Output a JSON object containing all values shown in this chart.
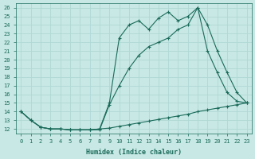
{
  "title": "",
  "xlabel": "Humidex (Indice chaleur)",
  "ylabel": "",
  "bg_color": "#c8e8e5",
  "line_color": "#1a6b5a",
  "grid_color": "#b0d8d4",
  "ylim": [
    11.5,
    26.5
  ],
  "xlim": [
    -0.5,
    23.5
  ],
  "yticks": [
    12,
    13,
    14,
    15,
    16,
    17,
    18,
    19,
    20,
    21,
    22,
    23,
    24,
    25,
    26
  ],
  "xticks": [
    0,
    1,
    2,
    3,
    4,
    5,
    6,
    7,
    8,
    9,
    10,
    11,
    12,
    13,
    14,
    15,
    16,
    17,
    18,
    19,
    20,
    21,
    22,
    23
  ],
  "line1_x": [
    0,
    1,
    2,
    3,
    4,
    5,
    6,
    7,
    8,
    9,
    10,
    11,
    12,
    13,
    14,
    15,
    16,
    17,
    18,
    19,
    20,
    21,
    22,
    23
  ],
  "line1_y": [
    14.0,
    13.0,
    12.2,
    12.0,
    12.0,
    11.9,
    11.9,
    11.9,
    12.0,
    12.1,
    12.3,
    12.5,
    12.7,
    12.9,
    13.1,
    13.3,
    13.5,
    13.7,
    14.0,
    14.2,
    14.4,
    14.6,
    14.8,
    15.0
  ],
  "line2_x": [
    0,
    1,
    2,
    3,
    4,
    5,
    6,
    7,
    8,
    9,
    10,
    11,
    12,
    13,
    14,
    15,
    16,
    17,
    18,
    19,
    20,
    21,
    22,
    23
  ],
  "line2_y": [
    14.0,
    13.0,
    12.2,
    12.0,
    12.0,
    11.9,
    11.9,
    11.9,
    11.9,
    14.8,
    17.0,
    19.0,
    20.5,
    21.5,
    22.0,
    22.5,
    23.5,
    24.0,
    26.0,
    21.0,
    18.5,
    16.2,
    15.2,
    15.0
  ],
  "line3_x": [
    0,
    1,
    2,
    3,
    4,
    5,
    6,
    7,
    8,
    9,
    10,
    11,
    12,
    13,
    14,
    15,
    16,
    17,
    18,
    19,
    20,
    21,
    22,
    23
  ],
  "line3_y": [
    14.0,
    13.0,
    12.2,
    12.0,
    12.0,
    11.9,
    11.9,
    11.9,
    12.0,
    15.0,
    22.5,
    24.0,
    24.5,
    23.5,
    24.8,
    25.5,
    24.5,
    25.0,
    26.0,
    24.0,
    21.0,
    18.5,
    16.2,
    15.0
  ]
}
